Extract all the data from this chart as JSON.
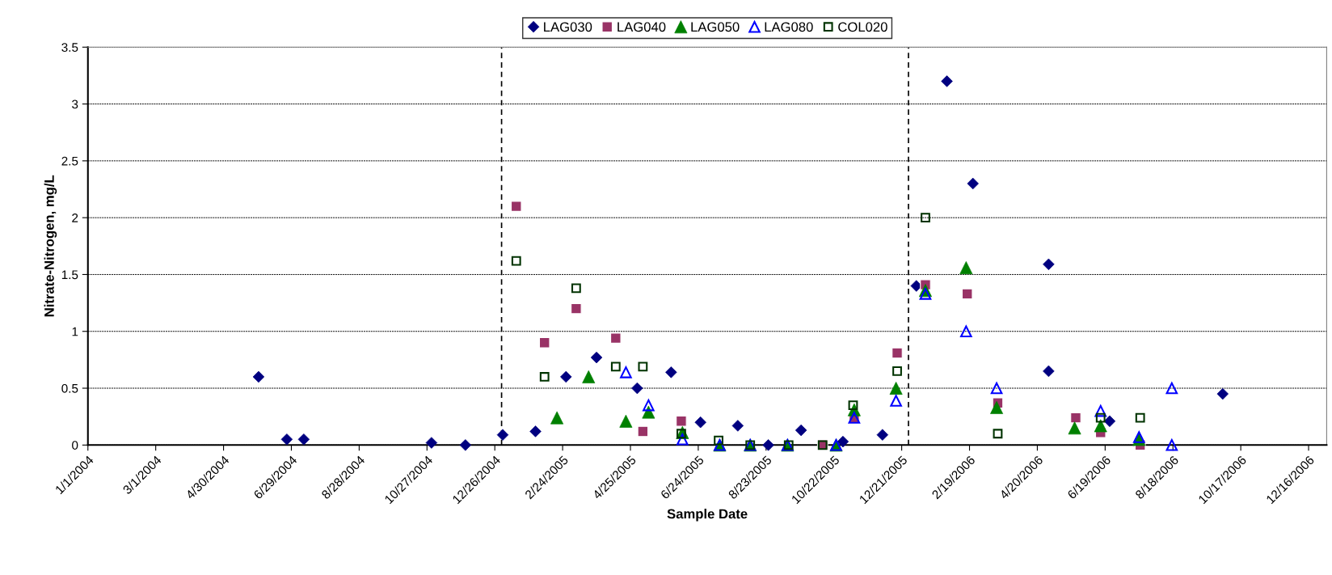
{
  "chart_data": {
    "type": "scatter",
    "xlabel": "Sample Date",
    "ylabel": "Nitrate-Nitrogen, mg/L",
    "xlim": [
      "2004-01-01",
      "2007-01-01"
    ],
    "ylim": [
      0,
      3.5
    ],
    "yticks": [
      0,
      0.5,
      1,
      1.5,
      2,
      2.5,
      3,
      3.5
    ],
    "xticks": [
      {
        "value": "2004-01-01",
        "label": "1/1/2004"
      },
      {
        "value": "2004-03-01",
        "label": "3/1/2004"
      },
      {
        "value": "2004-04-30",
        "label": "4/30/2004"
      },
      {
        "value": "2004-06-29",
        "label": "6/29/2004"
      },
      {
        "value": "2004-08-28",
        "label": "8/28/2004"
      },
      {
        "value": "2004-10-27",
        "label": "10/27/2004"
      },
      {
        "value": "2004-12-26",
        "label": "12/26/2004"
      },
      {
        "value": "2005-02-24",
        "label": "2/24/2005"
      },
      {
        "value": "2005-04-25",
        "label": "4/25/2005"
      },
      {
        "value": "2005-06-24",
        "label": "6/24/2005"
      },
      {
        "value": "2005-08-23",
        "label": "8/23/2005"
      },
      {
        "value": "2005-10-22",
        "label": "10/22/2005"
      },
      {
        "value": "2005-12-21",
        "label": "12/21/2005"
      },
      {
        "value": "2006-02-19",
        "label": "2/19/2006"
      },
      {
        "value": "2006-04-20",
        "label": "4/20/2006"
      },
      {
        "value": "2006-06-19",
        "label": "6/19/2006"
      },
      {
        "value": "2006-08-18",
        "label": "8/18/2006"
      },
      {
        "value": "2006-10-17",
        "label": "10/17/2006"
      },
      {
        "value": "2006-12-16",
        "label": "12/16/2006"
      }
    ],
    "grid": "y",
    "legend": "top",
    "ref_lines": [
      {
        "axis": "x",
        "value": "2005-01-01",
        "color": "#000000",
        "line_style": "dashed"
      },
      {
        "axis": "x",
        "value": "2005-12-27",
        "color": "#000000",
        "line_style": "dashed"
      }
    ],
    "series": [
      {
        "name": "LAG030",
        "color": "#000080",
        "marker": "diamond",
        "x": [
          "2004-05-31",
          "2004-06-25",
          "2004-07-10",
          "2004-10-31",
          "2004-11-30",
          "2005-01-02",
          "2005-01-31",
          "2005-02-27",
          "2005-03-26",
          "2005-05-01",
          "2005-05-31",
          "2005-06-26",
          "2005-07-29",
          "2005-08-25",
          "2005-09-23",
          "2005-10-30",
          "2005-12-04",
          "2006-01-03",
          "2006-01-30",
          "2006-02-22",
          "2006-04-30",
          "2006-04-30",
          "2006-06-23",
          "2006-10-01"
        ],
        "values": [
          0.6,
          0.05,
          0.05,
          0.02,
          0,
          0.09,
          0.12,
          0.6,
          0.77,
          0.5,
          0.64,
          0.2,
          0.17,
          0,
          0.13,
          0.03,
          0.09,
          1.4,
          3.2,
          2.3,
          1.59,
          0.65,
          0.21,
          0.45
        ]
      },
      {
        "name": "LAG040",
        "color": "#993366",
        "marker": "square",
        "x": [
          "2005-01-14",
          "2005-02-08",
          "2005-03-08",
          "2005-04-12",
          "2005-05-06",
          "2005-06-09",
          "2005-10-12",
          "2005-11-09",
          "2005-12-17",
          "2006-01-11",
          "2006-02-17",
          "2006-03-16",
          "2006-05-24",
          "2006-06-15",
          "2006-07-20"
        ],
        "values": [
          2.1,
          0.9,
          1.2,
          0.94,
          0.12,
          0.21,
          0,
          0.24,
          0.81,
          1.41,
          1.33,
          0.37,
          0.24,
          0.11,
          0
        ]
      },
      {
        "name": "LAG050",
        "color": "#008000",
        "marker": "triangle",
        "x": [
          "2005-02-19",
          "2005-03-19",
          "2005-04-21",
          "2005-05-11",
          "2005-06-10",
          "2005-07-13",
          "2005-08-09",
          "2005-09-11",
          "2005-10-24",
          "2005-11-09",
          "2005-12-16",
          "2006-01-11",
          "2006-02-16",
          "2006-03-15",
          "2006-05-23",
          "2006-06-15",
          "2006-07-19"
        ],
        "values": [
          0.24,
          0.6,
          0.21,
          0.29,
          0.11,
          0,
          0,
          0,
          0,
          0.31,
          0.5,
          1.36,
          1.56,
          0.33,
          0.15,
          0.17,
          0.05
        ]
      },
      {
        "name": "LAG080",
        "color": "#0000ff",
        "marker": "triangle",
        "x": [
          "2005-04-21",
          "2005-05-11",
          "2005-06-10",
          "2005-07-13",
          "2005-08-09",
          "2005-09-11",
          "2005-10-24",
          "2005-11-09",
          "2005-12-16",
          "2006-01-11",
          "2006-02-16",
          "2006-03-15",
          "2006-06-15",
          "2006-07-19",
          "2006-08-17",
          "2006-08-17"
        ],
        "values": [
          0.64,
          0.35,
          0.05,
          0,
          0,
          0,
          0,
          0.24,
          0.39,
          1.33,
          1.0,
          0.5,
          0.3,
          0.07,
          0,
          0.5
        ]
      },
      {
        "name": "COL020",
        "color": "#003300",
        "marker": "square",
        "x": [
          "2005-01-14",
          "2005-02-08",
          "2005-03-08",
          "2005-04-12",
          "2005-05-06",
          "2005-06-09",
          "2005-07-12",
          "2005-08-09",
          "2005-09-12",
          "2005-10-12",
          "2005-11-08",
          "2005-12-17",
          "2006-01-11",
          "2006-03-16",
          "2006-06-15",
          "2006-07-20"
        ],
        "values": [
          1.62,
          0.6,
          1.38,
          0.69,
          0.69,
          0.1,
          0.04,
          0,
          0,
          0,
          0.35,
          0.65,
          2.0,
          0.1,
          0.24,
          0.24
        ]
      }
    ]
  }
}
